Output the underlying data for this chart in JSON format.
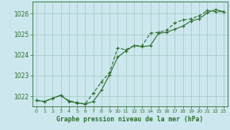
{
  "title": "Graphe pression niveau de la mer (hPa)",
  "background_color": "#cce8ee",
  "grid_color": "#aacccc",
  "line_color": "#2d6e2d",
  "xlim": [
    -0.5,
    23.5
  ],
  "ylim": [
    1021.5,
    1026.6
  ],
  "yticks": [
    1022,
    1023,
    1024,
    1025,
    1026
  ],
  "xticks": [
    0,
    1,
    2,
    3,
    4,
    5,
    6,
    7,
    8,
    9,
    10,
    11,
    12,
    13,
    14,
    15,
    16,
    17,
    18,
    19,
    20,
    21,
    22,
    23
  ],
  "series1_x": [
    0,
    1,
    2,
    3,
    4,
    5,
    6,
    7,
    8,
    9,
    10,
    11,
    12,
    13,
    14,
    15,
    16,
    17,
    18,
    19,
    20,
    21,
    22,
    23
  ],
  "series1_y": [
    1021.8,
    1021.75,
    1021.9,
    1022.05,
    1021.75,
    1021.68,
    1021.62,
    1021.75,
    1022.3,
    1023.05,
    1023.9,
    1024.2,
    1024.45,
    1024.4,
    1024.45,
    1025.05,
    1025.1,
    1025.25,
    1025.4,
    1025.65,
    1025.75,
    1026.05,
    1026.2,
    1026.1
  ],
  "series2_x": [
    0,
    1,
    2,
    3,
    4,
    5,
    6,
    7,
    8,
    9,
    10,
    11,
    12,
    13,
    14,
    15,
    16,
    17,
    18,
    19,
    20,
    21,
    22,
    23
  ],
  "series2_y": [
    1021.8,
    1021.75,
    1021.9,
    1022.05,
    1021.78,
    1021.7,
    1021.63,
    1022.15,
    1022.7,
    1023.15,
    1024.35,
    1024.25,
    1024.45,
    1024.45,
    1025.05,
    1025.1,
    1025.2,
    1025.55,
    1025.7,
    1025.75,
    1025.9,
    1026.15,
    1026.1,
    1026.1
  ]
}
